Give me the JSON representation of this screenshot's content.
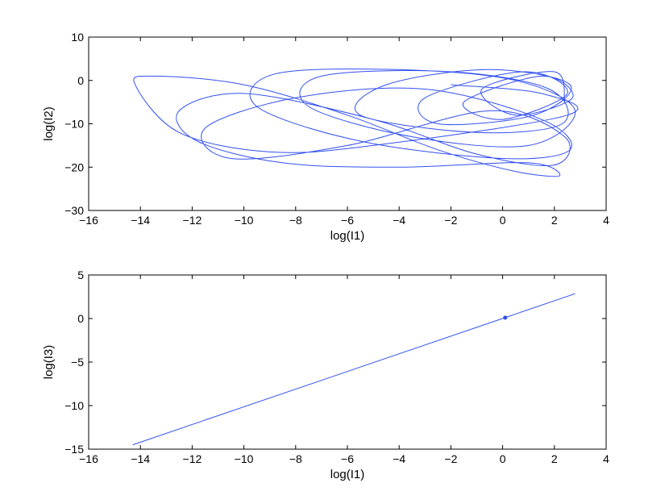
{
  "chart_data": [
    {
      "type": "line",
      "title": "",
      "xlabel": "log(I1)",
      "ylabel": "log(I2)",
      "xlim": [
        -16,
        4
      ],
      "ylim": [
        -30,
        10
      ],
      "xticks": [
        -16,
        -14,
        -12,
        -10,
        -8,
        -6,
        -4,
        -2,
        0,
        2,
        4
      ],
      "yticks": [
        -30,
        -20,
        -10,
        0,
        10
      ],
      "grid": false,
      "box": true,
      "color": "#3350f0",
      "series": [
        {
          "style": "phase-portrait",
          "x": [
            -2.0,
            1.5,
            2.5,
            -5.0,
            -9.0,
            -12.5,
            -14.2,
            -13.5,
            -10.0,
            -6.0,
            -2.5,
            0.5,
            2.2,
            1.0,
            -4.0,
            -8.5,
            -11.8,
            -12.5,
            -10.0,
            -5.0,
            -1.0,
            2.0,
            2.4,
            -0.5,
            -6.0,
            -10.5,
            -11.5,
            -8.0,
            -3.0,
            1.5,
            2.6,
            0.0,
            -5.5,
            -9.5,
            -8.8,
            -4.0,
            0.5,
            2.8,
            1.0,
            -3.5,
            -7.5,
            -7.0,
            -2.0,
            1.8,
            2.3,
            -1.0,
            -5.5,
            -4.5,
            -0.5,
            2.6,
            1.2,
            -2.5,
            -3.0,
            0.8,
            2.5,
            0.0,
            -1.5,
            1.5,
            2.7,
            0.5,
            -0.8,
            2.0,
            2.4
          ],
          "y": [
            -1.0,
            -3.0,
            -8.0,
            -15.0,
            -16.5,
            -12.0,
            -1.0,
            1.0,
            -1.0,
            -8.0,
            -16.0,
            -21.0,
            -22.0,
            -19.0,
            -20.0,
            -19.0,
            -14.0,
            -7.0,
            -3.0,
            -9.0,
            -17.0,
            -19.5,
            -13.0,
            -7.0,
            -15.0,
            -18.0,
            -11.0,
            -4.0,
            -2.0,
            -9.0,
            -16.0,
            -18.0,
            -14.0,
            -6.0,
            1.5,
            2.5,
            0.0,
            -7.0,
            -15.0,
            -13.0,
            -6.0,
            1.0,
            2.0,
            -2.0,
            -10.0,
            -12.0,
            -8.0,
            -1.0,
            2.5,
            -1.0,
            -8.0,
            -10.0,
            -4.0,
            2.0,
            -3.0,
            -9.0,
            -5.0,
            1.0,
            -4.0,
            -8.0,
            -2.0,
            2.0,
            -5.0
          ]
        }
      ]
    },
    {
      "type": "line",
      "title": "",
      "xlabel": "log(I1)",
      "ylabel": "log(I3)",
      "xlim": [
        -16,
        4
      ],
      "ylim": [
        -15,
        5
      ],
      "xticks": [
        -16,
        -14,
        -12,
        -10,
        -8,
        -6,
        -4,
        -2,
        0,
        2,
        4
      ],
      "yticks": [
        -15,
        -10,
        -5,
        0,
        5
      ],
      "grid": false,
      "box": true,
      "color": "#3350f0",
      "series": [
        {
          "style": "line",
          "x": [
            -14.3,
            2.8
          ],
          "y": [
            -14.5,
            2.85
          ]
        }
      ],
      "markers": [
        {
          "x": 0.1,
          "y": 0.1
        }
      ]
    }
  ]
}
